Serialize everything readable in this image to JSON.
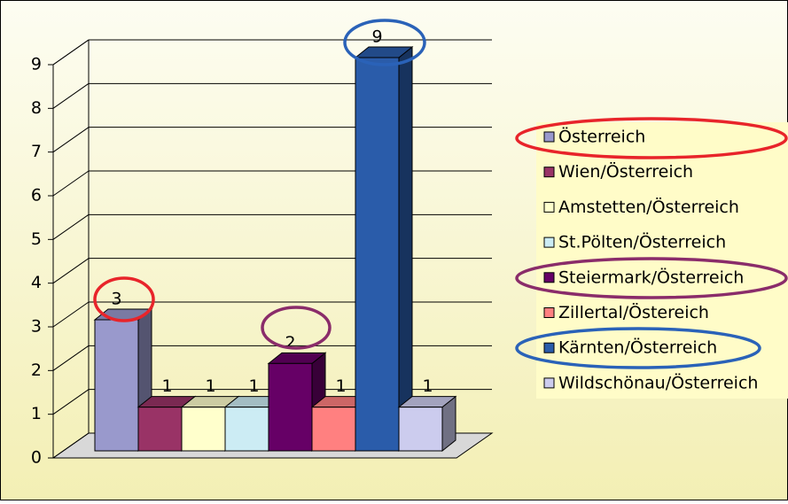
{
  "chart_data": {
    "type": "bar",
    "categories": [
      null
    ],
    "series": [
      {
        "name": "Österreich",
        "color": "#9999cc",
        "values": [
          3
        ]
      },
      {
        "name": "Wien/Österreich",
        "color": "#993366",
        "values": [
          1
        ]
      },
      {
        "name": "Amstetten/Österreich",
        "color": "#ffffcc",
        "values": [
          1
        ]
      },
      {
        "name": "St.Pölten/Österreich",
        "color": "#ccecf4",
        "values": [
          1
        ]
      },
      {
        "name": "Steiermark/Österreich",
        "color": "#660066",
        "values": [
          2
        ]
      },
      {
        "name": "Zillertal/Östereich",
        "color": "#ff8080",
        "values": [
          1
        ]
      },
      {
        "name": "Kärnten/Österreich",
        "color": "#2a5caa",
        "values": [
          9
        ]
      },
      {
        "name": "Wildschönau/Österreich",
        "color": "#ccccee",
        "values": [
          1
        ]
      }
    ],
    "ylim": [
      0,
      9
    ],
    "yticks": [
      0,
      1,
      2,
      3,
      4,
      5,
      6,
      7,
      8,
      9
    ],
    "grid": true,
    "legend": "right"
  }
}
